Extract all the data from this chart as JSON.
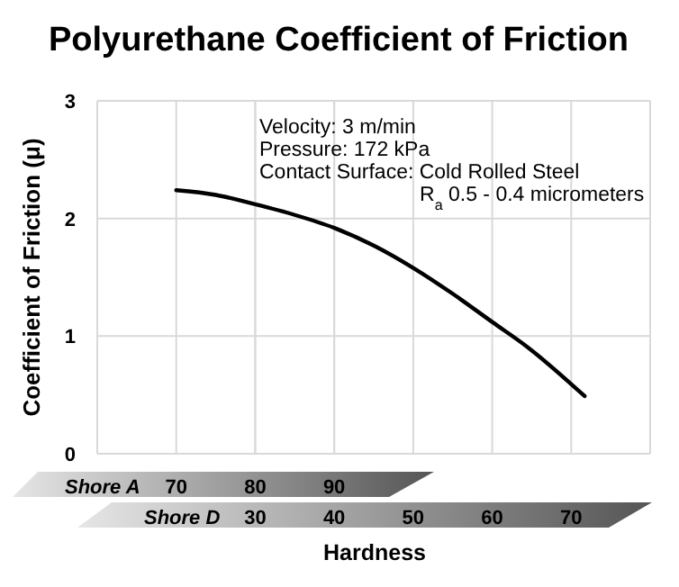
{
  "chart_data": {
    "type": "line",
    "title": "Polyurethane Coefficient of Friction",
    "xlabel": "Hardness",
    "ylabel": "Coefficient of Friction (μ)",
    "x2label": "Shore A",
    "annotations": [
      "Shore D",
      "Velocity: 3 m/min",
      "Pressure: 172 kPa",
      "Contact Surface: Cold Rolled Steel",
      "R$_{a}$ 0.5 - 0.4 micrometers"
    ],
    "xlim": [
      10,
      80
    ],
    "xticks": [
      30,
      40,
      50,
      60,
      70
    ],
    "x2lim": [
      60,
      130
    ],
    "x2ticks": [
      70,
      80,
      90
    ],
    "ylim": [
      0,
      3
    ],
    "yticks": [
      0,
      1,
      2,
      3
    ],
    "grid": true,
    "marker": "none",
    "line_style": "solid",
    "series": [
      {
        "color": "#000000",
        "x": [
          20,
          25,
          30,
          35,
          40,
          45,
          50,
          55,
          60,
          64.6,
          71.7
        ],
        "values": [
          2.24,
          2.2,
          2.12,
          2.03,
          1.92,
          1.77,
          1.58,
          1.36,
          1.12,
          0.9,
          0.49
        ]
      }
    ]
  }
}
